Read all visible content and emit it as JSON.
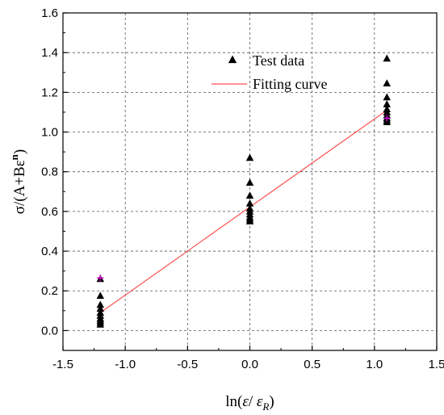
{
  "chart_data": {
    "type": "scatter",
    "xlabel": "ln(ε/ ε_R)",
    "ylabel": "σ/(A+Bε^n)",
    "xlim": [
      -1.5,
      1.5
    ],
    "ylim": [
      -0.1,
      1.6
    ],
    "x_ticks": [
      "-1.5",
      "-1.0",
      "-0.5",
      "0.0",
      "0.5",
      "1.0",
      "1.5"
    ],
    "y_ticks": [
      "0.0",
      "0.2",
      "0.4",
      "0.6",
      "0.8",
      "1.0",
      "1.2",
      "1.4",
      "1.6"
    ],
    "grid": true,
    "legend_position": "top-right",
    "series": [
      {
        "name": "Test data",
        "kind": "marker",
        "marker": "triangle",
        "color": "#000000",
        "points": [
          [
            -1.2,
            0.26
          ],
          [
            -1.2,
            0.175
          ],
          [
            -1.2,
            0.13
          ],
          [
            -1.2,
            0.11
          ],
          [
            -1.2,
            0.09
          ],
          [
            -1.2,
            0.075
          ],
          [
            -1.2,
            0.06
          ],
          [
            -1.2,
            0.05
          ],
          [
            -1.2,
            0.04
          ],
          [
            -1.2,
            0.03
          ],
          [
            0.0,
            0.87
          ],
          [
            0.0,
            0.745
          ],
          [
            0.0,
            0.68
          ],
          [
            0.0,
            0.64
          ],
          [
            0.0,
            0.615
          ],
          [
            0.0,
            0.6
          ],
          [
            0.0,
            0.585
          ],
          [
            0.0,
            0.57
          ],
          [
            0.0,
            0.56
          ],
          [
            0.0,
            0.55
          ],
          [
            1.1,
            1.37
          ],
          [
            1.1,
            1.245
          ],
          [
            1.1,
            1.175
          ],
          [
            1.1,
            1.14
          ],
          [
            1.1,
            1.115
          ],
          [
            1.1,
            1.1
          ],
          [
            1.1,
            1.085
          ],
          [
            1.1,
            1.07
          ],
          [
            1.1,
            1.06
          ],
          [
            1.1,
            1.05
          ]
        ]
      },
      {
        "name": "Fitting curve",
        "kind": "line",
        "color": "#ff5050",
        "points": [
          [
            -1.2,
            0.09
          ],
          [
            1.1,
            1.11
          ]
        ]
      }
    ],
    "accent_markers": {
      "color": "#cc00cc",
      "points": [
        [
          -1.2,
          0.265
        ],
        [
          1.1,
          1.07
        ]
      ]
    }
  }
}
